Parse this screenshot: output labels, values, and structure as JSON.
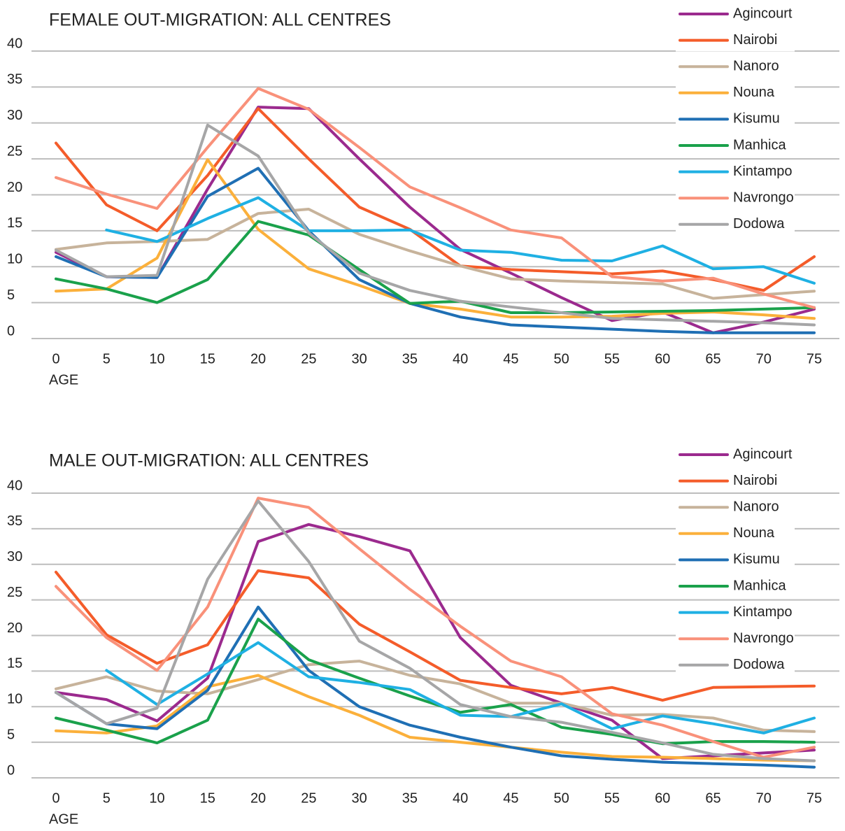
{
  "chart_data": [
    {
      "type": "line",
      "title": "FEMALE OUT-MIGRATION: ALL CENTRES",
      "xlabel": "AGE",
      "x": [
        0,
        5,
        10,
        15,
        20,
        25,
        30,
        35,
        40,
        45,
        50,
        55,
        60,
        65,
        70,
        75
      ],
      "xlim": [
        0,
        75
      ],
      "xticks": [
        0,
        5,
        10,
        15,
        20,
        25,
        30,
        35,
        40,
        45,
        50,
        55,
        60,
        65,
        70,
        75
      ],
      "ylim": [
        0,
        40
      ],
      "yticks": [
        0,
        5,
        10,
        15,
        20,
        25,
        30,
        35,
        40
      ],
      "grid": true,
      "legend": "upper right",
      "series": [
        {
          "name": "Agincourt",
          "color": "#9b2a8e",
          "values": [
            12,
            8.6,
            8.5,
            20.8,
            32.2,
            32,
            25,
            18.3,
            12.4,
            9.1,
            5.7,
            2.5,
            3.7,
            0.8,
            2.3,
            4.1
          ]
        },
        {
          "name": "Nairobi",
          "color": "#f45c2a",
          "values": [
            27.2,
            18.6,
            15,
            22.7,
            32,
            25,
            18.3,
            15.2,
            10.1,
            9.6,
            9.3,
            9,
            9.4,
            8.2,
            6.7,
            11.4
          ]
        },
        {
          "name": "Nanoro",
          "color": "#c7b39b",
          "values": [
            12.4,
            13.3,
            13.5,
            13.8,
            17.4,
            18,
            14.5,
            12.2,
            10.1,
            8.3,
            8,
            7.8,
            7.6,
            5.6,
            6.1,
            6.6
          ]
        },
        {
          "name": "Nouna",
          "color": "#fbb03b",
          "values": [
            6.6,
            6.9,
            11.2,
            24.9,
            15.2,
            9.7,
            7.4,
            4.9,
            4.1,
            3,
            3,
            3.1,
            3.5,
            3.7,
            3.3,
            2.8
          ]
        },
        {
          "name": "Kisumu",
          "color": "#1f6fb4",
          "values": [
            11.4,
            8.6,
            8.5,
            19.8,
            23.7,
            15,
            8.2,
            4.9,
            3,
            1.9,
            1.6,
            1.3,
            1,
            0.8,
            0.8,
            0.8
          ]
        },
        {
          "name": "Manhica",
          "color": "#1aa14b",
          "values": [
            8.3,
            6.9,
            5,
            8.2,
            16.3,
            14.4,
            9.6,
            4.9,
            5.2,
            3.6,
            3.6,
            3.7,
            3.8,
            3.9,
            4.1,
            4.3
          ]
        },
        {
          "name": "Kintampo",
          "color": "#1fb0e3",
          "values": [
            null,
            15.1,
            13.5,
            16.7,
            19.6,
            15,
            15,
            15.1,
            12.3,
            12,
            10.9,
            10.8,
            12.9,
            9.7,
            10,
            7.7
          ]
        },
        {
          "name": "Navrongo",
          "color": "#f9917a",
          "values": [
            22.4,
            20.1,
            18.1,
            26.6,
            34.8,
            31.9,
            26.6,
            21.1,
            18.2,
            15.1,
            14,
            8.6,
            8,
            8.4,
            6.2,
            4.3
          ]
        },
        {
          "name": "Dodowa",
          "color": "#a6a6a7",
          "values": [
            12.3,
            8.6,
            8.8,
            29.7,
            25.4,
            14.7,
            9.1,
            6.7,
            5.2,
            4.4,
            3.6,
            2.8,
            2.6,
            2.4,
            2.2,
            1.9
          ]
        }
      ]
    },
    {
      "type": "line",
      "title": "MALE OUT-MIGRATION: ALL CENTRES",
      "xlabel": "AGE",
      "x": [
        0,
        5,
        10,
        15,
        20,
        25,
        30,
        35,
        40,
        45,
        50,
        55,
        60,
        65,
        70,
        75
      ],
      "xlim": [
        0,
        75
      ],
      "xticks": [
        0,
        5,
        10,
        15,
        20,
        25,
        30,
        35,
        40,
        45,
        50,
        55,
        60,
        65,
        70,
        75
      ],
      "ylim": [
        0,
        40
      ],
      "yticks": [
        0,
        5,
        10,
        15,
        20,
        25,
        30,
        35,
        40
      ],
      "grid": true,
      "legend": "upper right",
      "series": [
        {
          "name": "Agincourt",
          "color": "#9b2a8e",
          "values": [
            12,
            11,
            8,
            14,
            33.2,
            35.6,
            33.9,
            31.9,
            19.7,
            13,
            10.5,
            8.1,
            2.7,
            3.1,
            3.5,
            3.9
          ]
        },
        {
          "name": "Nairobi",
          "color": "#f45c2a",
          "values": [
            28.9,
            20.1,
            16.1,
            18.7,
            29.1,
            28.1,
            21.6,
            17.7,
            13.7,
            12.7,
            11.8,
            12.7,
            10.9,
            12.7,
            12.8,
            12.9
          ]
        },
        {
          "name": "Nanoro",
          "color": "#c7b39b",
          "values": [
            12.5,
            14.2,
            12.2,
            11.8,
            13.8,
            15.9,
            16.4,
            14.4,
            13.2,
            10.5,
            10.5,
            8.8,
            8.9,
            8.4,
            6.7,
            6.5
          ]
        },
        {
          "name": "Nouna",
          "color": "#fbb03b",
          "values": [
            6.6,
            6.3,
            7.3,
            12.8,
            14.4,
            11.4,
            8.8,
            5.7,
            5,
            4.3,
            3.6,
            3,
            2.9,
            2.7,
            2.5,
            2.4
          ]
        },
        {
          "name": "Kisumu",
          "color": "#1f6fb4",
          "values": [
            12,
            7.6,
            6.9,
            12.3,
            24,
            15.1,
            10,
            7.4,
            5.7,
            4.3,
            3.1,
            2.6,
            2.2,
            2,
            1.8,
            1.5
          ]
        },
        {
          "name": "Manhica",
          "color": "#1aa14b",
          "values": [
            8.4,
            6.7,
            4.9,
            8.1,
            22.3,
            16.6,
            14,
            11.5,
            9.2,
            10.3,
            7.1,
            6.1,
            4.8,
            5.1,
            5.1,
            5
          ]
        },
        {
          "name": "Kintampo",
          "color": "#1fb0e3",
          "values": [
            null,
            15.1,
            10.3,
            14.6,
            19,
            14.2,
            13.4,
            12.4,
            8.8,
            8.6,
            10.4,
            6.9,
            8.7,
            7.6,
            6.3,
            8.4
          ]
        },
        {
          "name": "Navrongo",
          "color": "#f9917a",
          "values": [
            26.9,
            19.7,
            15.1,
            24,
            39.3,
            38,
            32.2,
            26.5,
            21.3,
            16.4,
            14.2,
            9,
            7.4,
            5.1,
            2.9,
            4.3
          ]
        },
        {
          "name": "Dodowa",
          "color": "#a6a6a7",
          "values": [
            12,
            7.6,
            9.8,
            27.9,
            38.9,
            30.4,
            19.2,
            15.4,
            10.3,
            8.6,
            7.8,
            6.4,
            4.9,
            3.3,
            2.7,
            2.4
          ]
        }
      ]
    }
  ]
}
